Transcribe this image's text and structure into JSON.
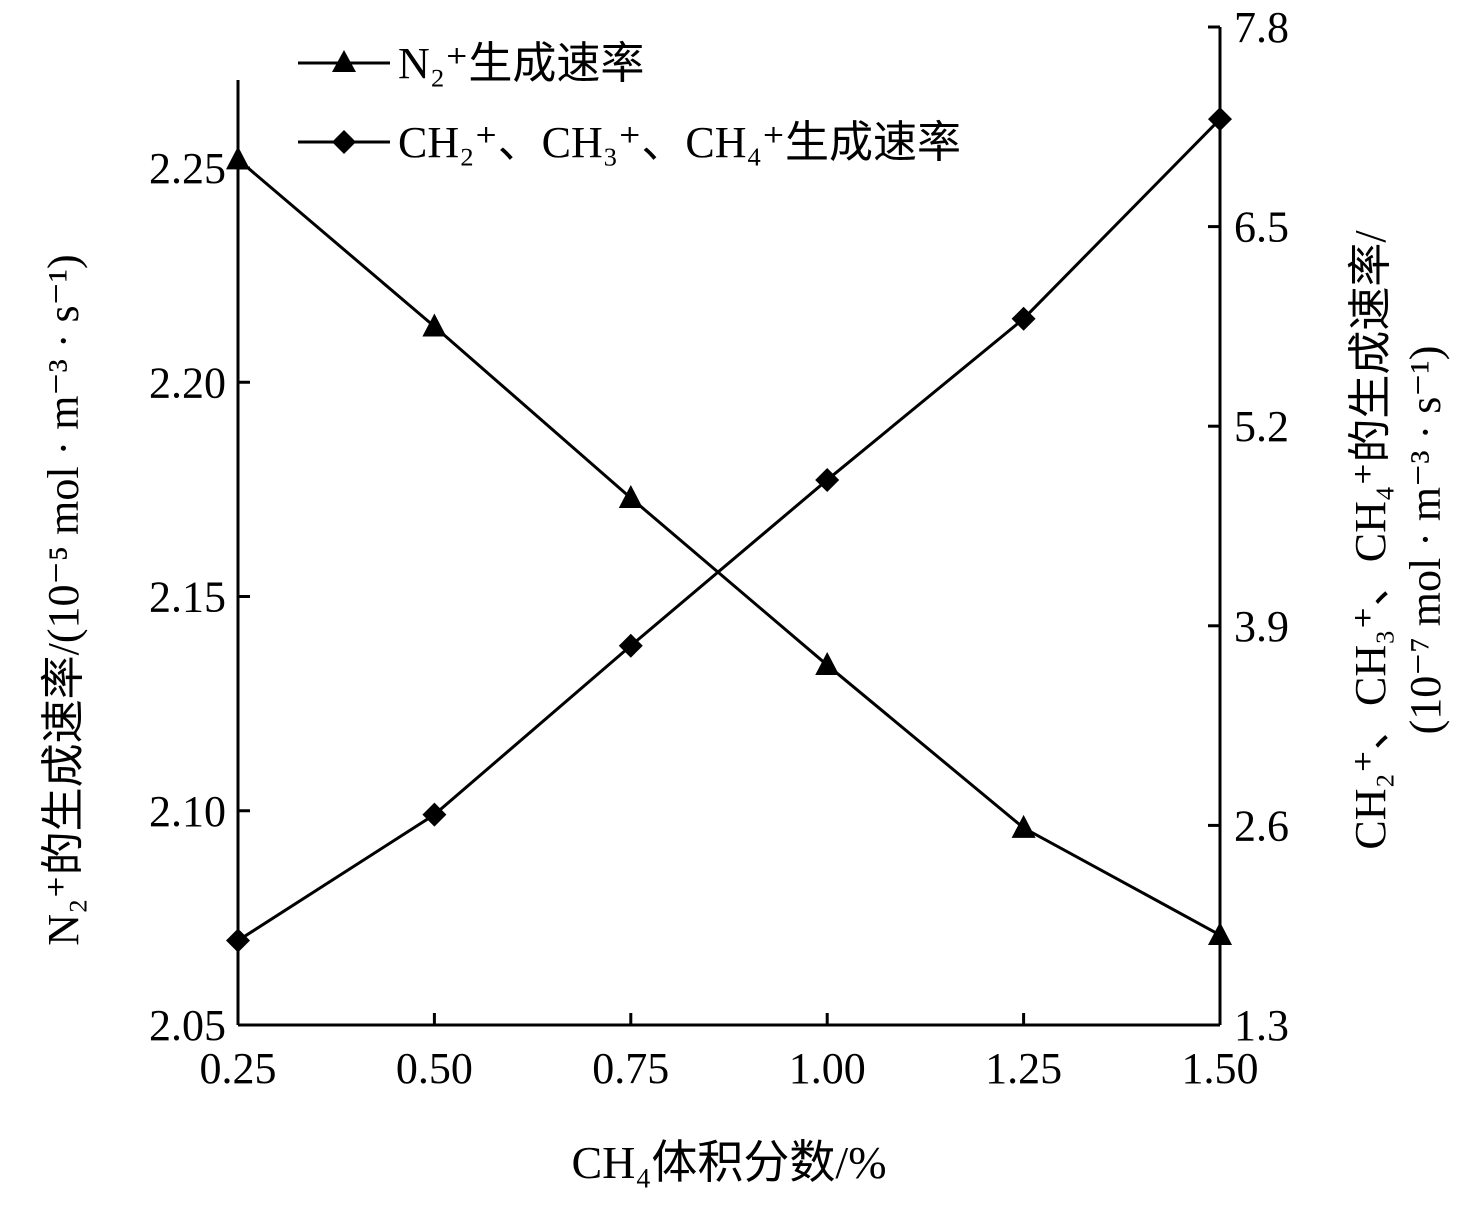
{
  "chart_data": {
    "type": "line",
    "title": "",
    "xlabel": "CH₄体积分数/%",
    "ylabel_left": "N₂⁺的生成速率/(10⁻⁵ mol · m⁻³ · s⁻¹)",
    "ylabel_right_line1": "CH₂⁺、CH₃⁺、CH₄⁺的生成速率/",
    "ylabel_right_line2": "(10⁻⁷ mol · m⁻³ · s⁻¹)",
    "x": [
      0.25,
      0.5,
      0.75,
      1.0,
      1.25,
      1.5
    ],
    "x_tick_labels": [
      "0.25",
      "0.50",
      "0.75",
      "1.00",
      "1.25",
      "1.50"
    ],
    "xlim": [
      0.25,
      1.5
    ],
    "ylim_left": [
      2.05,
      2.27
    ],
    "y_left_ticks": [
      "2.05",
      "2.10",
      "2.15",
      "2.20",
      "2.25"
    ],
    "ylim_right": [
      1.3,
      7.8
    ],
    "y_right_ticks": [
      "1.3",
      "2.6",
      "3.9",
      "5.2",
      "6.5",
      "7.8"
    ],
    "grid": false,
    "legend_placement": "top-left",
    "series": [
      {
        "name": "N₂⁺生成速率",
        "axis": "left",
        "marker": "triangle",
        "values": [
          2.252,
          2.213,
          2.173,
          2.134,
          2.096,
          2.071
        ]
      },
      {
        "name": "CH₂⁺、CH₃⁺、CH₄⁺生成速率",
        "axis": "right",
        "marker": "diamond",
        "values": [
          1.85,
          2.67,
          3.77,
          4.85,
          5.9,
          7.2
        ]
      }
    ]
  }
}
